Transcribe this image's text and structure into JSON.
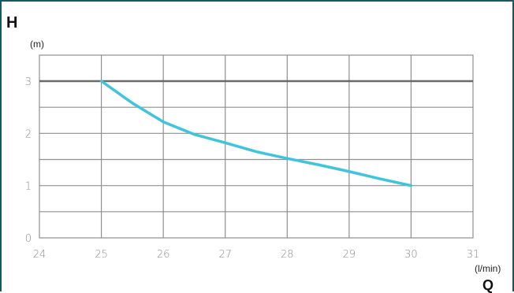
{
  "chart_data": {
    "type": "line",
    "title": "",
    "ylabel": "H",
    "yunit": "(m)",
    "xlabel": "Q",
    "xunit": "(l/min)",
    "xlim": [
      24,
      31
    ],
    "ylim": [
      0,
      3
    ],
    "xticks": [
      "24",
      "25",
      "26",
      "27",
      "28",
      "29",
      "30",
      "31"
    ],
    "yticks": [
      "0",
      "1",
      "2",
      "3"
    ],
    "grid": true,
    "series": [
      {
        "color": "#3ec4dc",
        "x": [
          25.0,
          25.5,
          26.0,
          26.5,
          27.0,
          27.5,
          28.0,
          28.5,
          29.0,
          29.5,
          30.0
        ],
        "y": [
          3.0,
          2.58,
          2.22,
          1.98,
          1.82,
          1.65,
          1.52,
          1.4,
          1.27,
          1.13,
          1.0
        ]
      }
    ]
  },
  "colors": {
    "frame": "#1d5563",
    "grid": "#8f8f8f",
    "curve": "#3ec4dc"
  }
}
